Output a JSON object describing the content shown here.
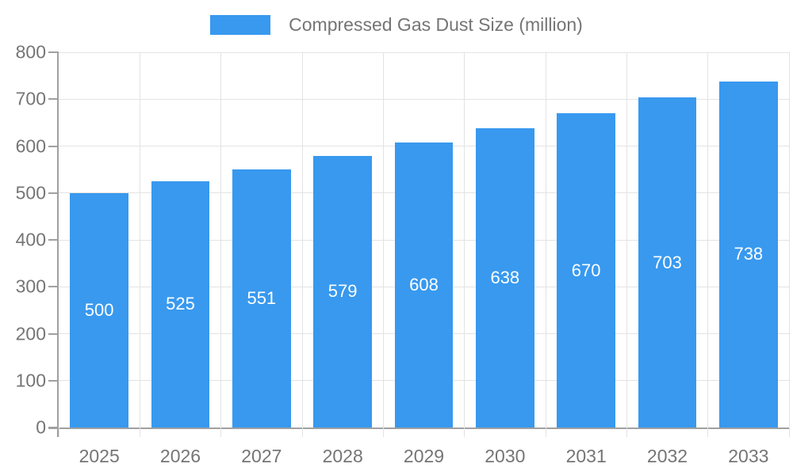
{
  "chart_data": {
    "type": "bar",
    "title": "",
    "legend": "Compressed Gas Dust Size (million)",
    "legend_position": "top-center",
    "categories": [
      "2025",
      "2026",
      "2027",
      "2028",
      "2029",
      "2030",
      "2031",
      "2032",
      "2033"
    ],
    "values": [
      500,
      525,
      551,
      579,
      608,
      638,
      670,
      703,
      738
    ],
    "xlabel": "",
    "ylabel": "",
    "ylim": [
      0,
      800
    ],
    "yticks": [
      0,
      100,
      200,
      300,
      400,
      500,
      600,
      700,
      800
    ],
    "grid": true,
    "bar_labels_inside": true
  },
  "colors": {
    "bar": "#3899EF",
    "axis": "#a0a0a0",
    "grid": "#e3e3e3",
    "text": "#757575",
    "bar_label": "#ffffff"
  }
}
